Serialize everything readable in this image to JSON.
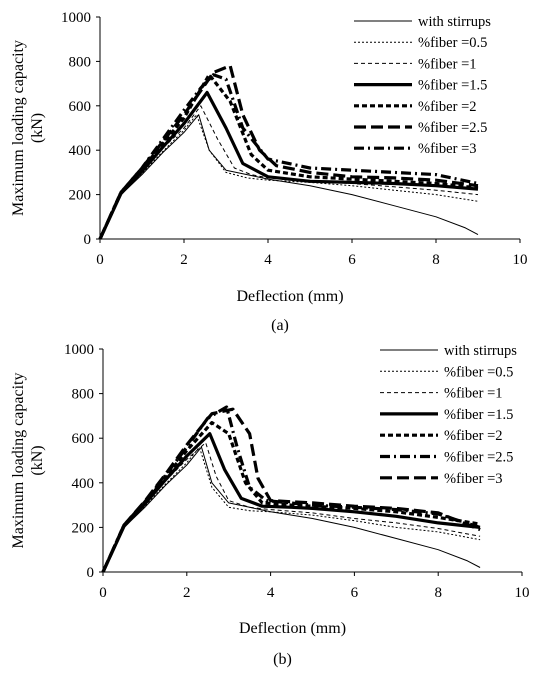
{
  "chart_data": [
    {
      "type": "line",
      "caption": "(a)",
      "xlabel": "Deflection (mm)",
      "ylabel": "Maximum loading capacity (kN)",
      "ylabel_lines": [
        "Maximum loading capacity",
        "(kN)"
      ],
      "xlim": [
        0,
        10
      ],
      "ylim": [
        0,
        1000
      ],
      "xticks": [
        0,
        2,
        4,
        6,
        8,
        10
      ],
      "yticks": [
        0,
        200,
        400,
        600,
        800,
        1000
      ],
      "grid": false,
      "legend_position": "top-right",
      "series": [
        {
          "name": "with stirrups",
          "style": "thin",
          "points": [
            [
              0,
              0
            ],
            [
              0.5,
              200
            ],
            [
              1,
              290
            ],
            [
              1.5,
              390
            ],
            [
              2,
              480
            ],
            [
              2.35,
              560
            ],
            [
              2.6,
              400
            ],
            [
              3,
              310
            ],
            [
              3.5,
              290
            ],
            [
              4,
              270
            ],
            [
              5,
              240
            ],
            [
              6,
              200
            ],
            [
              7,
              150
            ],
            [
              8,
              100
            ],
            [
              8.7,
              50
            ],
            [
              9,
              20
            ]
          ]
        },
        {
          "name": "%fiber =0.5",
          "style": "dotted",
          "points": [
            [
              0,
              0
            ],
            [
              0.5,
              200
            ],
            [
              1,
              295
            ],
            [
              1.5,
              395
            ],
            [
              2,
              490
            ],
            [
              2.3,
              560
            ],
            [
              2.6,
              400
            ],
            [
              3,
              300
            ],
            [
              3.5,
              275
            ],
            [
              4,
              265
            ],
            [
              5,
              255
            ],
            [
              6,
              240
            ],
            [
              7,
              220
            ],
            [
              8,
              200
            ],
            [
              9,
              170
            ]
          ]
        },
        {
          "name": "%fiber =1",
          "style": "dashed-thin",
          "points": [
            [
              0,
              0
            ],
            [
              0.5,
              205
            ],
            [
              1,
              300
            ],
            [
              1.5,
              410
            ],
            [
              2,
              500
            ],
            [
              2.4,
              600
            ],
            [
              2.8,
              450
            ],
            [
              3.2,
              320
            ],
            [
              3.6,
              290
            ],
            [
              4,
              275
            ],
            [
              5,
              260
            ],
            [
              6,
              250
            ],
            [
              7,
              235
            ],
            [
              8,
              220
            ],
            [
              9,
              200
            ]
          ]
        },
        {
          "name": "%fiber =1.5",
          "style": "thick",
          "points": [
            [
              0,
              0
            ],
            [
              0.5,
              205
            ],
            [
              1,
              305
            ],
            [
              1.5,
              415
            ],
            [
              2,
              520
            ],
            [
              2.55,
              660
            ],
            [
              3,
              500
            ],
            [
              3.4,
              340
            ],
            [
              4,
              280
            ],
            [
              5,
              260
            ],
            [
              6,
              255
            ],
            [
              7,
              250
            ],
            [
              8,
              240
            ],
            [
              9,
              225
            ]
          ]
        },
        {
          "name": "%fiber =2",
          "style": "dashed-thick",
          "points": [
            [
              0,
              0
            ],
            [
              0.5,
              210
            ],
            [
              1,
              315
            ],
            [
              1.5,
              430
            ],
            [
              2,
              545
            ],
            [
              2.6,
              740
            ],
            [
              3.1,
              620
            ],
            [
              3.6,
              380
            ],
            [
              4,
              310
            ],
            [
              5,
              280
            ],
            [
              6,
              270
            ],
            [
              7,
              260
            ],
            [
              8,
              250
            ],
            [
              9,
              230
            ]
          ]
        },
        {
          "name": "%fiber =2.5",
          "style": "dashed-long",
          "points": [
            [
              0,
              0
            ],
            [
              0.5,
              210
            ],
            [
              1,
              320
            ],
            [
              1.5,
              440
            ],
            [
              2,
              560
            ],
            [
              2.7,
              750
            ],
            [
              3.1,
              780
            ],
            [
              3.4,
              560
            ],
            [
              3.8,
              400
            ],
            [
              4.2,
              330
            ],
            [
              5,
              300
            ],
            [
              6,
              280
            ],
            [
              7,
              275
            ],
            [
              8,
              265
            ],
            [
              9,
              240
            ]
          ]
        },
        {
          "name": "%fiber =3",
          "style": "dashdot",
          "points": [
            [
              0,
              0
            ],
            [
              0.5,
              210
            ],
            [
              1,
              320
            ],
            [
              1.5,
              450
            ],
            [
              2,
              580
            ],
            [
              2.4,
              680
            ],
            [
              2.7,
              740
            ],
            [
              3,
              720
            ],
            [
              3.4,
              500
            ],
            [
              4,
              360
            ],
            [
              5,
              320
            ],
            [
              6,
              310
            ],
            [
              7,
              300
            ],
            [
              8,
              290
            ],
            [
              9,
              250
            ]
          ]
        }
      ]
    },
    {
      "type": "line",
      "caption": "(b)",
      "xlabel": "Deflection (mm)",
      "ylabel": "Maximum loading capacity (kN)",
      "ylabel_lines": [
        "Maximum loading capacity",
        "(kN)"
      ],
      "xlim": [
        0,
        10
      ],
      "ylim": [
        0,
        1000
      ],
      "xticks": [
        0,
        2,
        4,
        6,
        8,
        10
      ],
      "yticks": [
        0,
        200,
        400,
        600,
        800,
        1000
      ],
      "grid": false,
      "legend_position": "top-right",
      "series": [
        {
          "name": "with stirrups",
          "style": "thin",
          "points": [
            [
              0,
              0
            ],
            [
              0.5,
              200
            ],
            [
              1,
              290
            ],
            [
              1.5,
              390
            ],
            [
              2,
              480
            ],
            [
              2.35,
              560
            ],
            [
              2.6,
              400
            ],
            [
              3,
              310
            ],
            [
              3.5,
              290
            ],
            [
              4,
              270
            ],
            [
              5,
              240
            ],
            [
              6,
              200
            ],
            [
              7,
              150
            ],
            [
              8,
              100
            ],
            [
              8.7,
              50
            ],
            [
              9,
              20
            ]
          ]
        },
        {
          "name": "%fiber =0.5",
          "style": "dotted",
          "points": [
            [
              0,
              0
            ],
            [
              0.5,
              200
            ],
            [
              1,
              295
            ],
            [
              1.5,
              395
            ],
            [
              2,
              490
            ],
            [
              2.3,
              560
            ],
            [
              2.6,
              380
            ],
            [
              3,
              290
            ],
            [
              3.5,
              275
            ],
            [
              4,
              270
            ],
            [
              5,
              255
            ],
            [
              6,
              230
            ],
            [
              7,
              200
            ],
            [
              8,
              180
            ],
            [
              9,
              145
            ]
          ]
        },
        {
          "name": "%fiber =1",
          "style": "dashed-thin",
          "points": [
            [
              0,
              0
            ],
            [
              0.5,
              205
            ],
            [
              1,
              300
            ],
            [
              1.5,
              410
            ],
            [
              2,
              505
            ],
            [
              2.45,
              580
            ],
            [
              2.7,
              430
            ],
            [
              3,
              320
            ],
            [
              3.5,
              290
            ],
            [
              4,
              280
            ],
            [
              5,
              265
            ],
            [
              6,
              240
            ],
            [
              7,
              220
            ],
            [
              8,
              195
            ],
            [
              9,
              160
            ]
          ]
        },
        {
          "name": "%fiber =1.5",
          "style": "thick",
          "points": [
            [
              0,
              0
            ],
            [
              0.5,
              205
            ],
            [
              1,
              305
            ],
            [
              1.5,
              415
            ],
            [
              2,
              520
            ],
            [
              2.55,
              620
            ],
            [
              2.9,
              460
            ],
            [
              3.3,
              330
            ],
            [
              3.8,
              295
            ],
            [
              4.5,
              290
            ],
            [
              5,
              285
            ],
            [
              6,
              270
            ],
            [
              7,
              250
            ],
            [
              8,
              220
            ],
            [
              9,
              200
            ]
          ]
        },
        {
          "name": "%fiber =2",
          "style": "dashed-thick",
          "points": [
            [
              0,
              0
            ],
            [
              0.5,
              210
            ],
            [
              1,
              310
            ],
            [
              1.5,
              425
            ],
            [
              2,
              545
            ],
            [
              2.6,
              670
            ],
            [
              3,
              620
            ],
            [
              3.4,
              400
            ],
            [
              3.8,
              310
            ],
            [
              4.5,
              300
            ],
            [
              5,
              295
            ],
            [
              6,
              285
            ],
            [
              7,
              270
            ],
            [
              8,
              245
            ],
            [
              9,
              215
            ]
          ]
        },
        {
          "name": "%fiber =2.5",
          "style": "dashdot",
          "points": [
            [
              0,
              0
            ],
            [
              0.5,
              210
            ],
            [
              1,
              315
            ],
            [
              1.5,
              435
            ],
            [
              2,
              560
            ],
            [
              2.5,
              690
            ],
            [
              2.95,
              740
            ],
            [
              3.2,
              560
            ],
            [
              3.5,
              380
            ],
            [
              3.9,
              320
            ],
            [
              5,
              300
            ],
            [
              6,
              290
            ],
            [
              7,
              280
            ],
            [
              8,
              260
            ],
            [
              9,
              200
            ]
          ]
        },
        {
          "name": "%fiber =3",
          "style": "dashed-long",
          "points": [
            [
              0,
              0
            ],
            [
              0.5,
              210
            ],
            [
              1,
              318
            ],
            [
              1.5,
              440
            ],
            [
              2,
              570
            ],
            [
              2.6,
              710
            ],
            [
              3.1,
              730
            ],
            [
              3.5,
              620
            ],
            [
              3.7,
              420
            ],
            [
              4,
              320
            ],
            [
              5,
              310
            ],
            [
              6,
              295
            ],
            [
              7,
              285
            ],
            [
              8,
              265
            ],
            [
              9,
              190
            ]
          ]
        }
      ]
    }
  ]
}
